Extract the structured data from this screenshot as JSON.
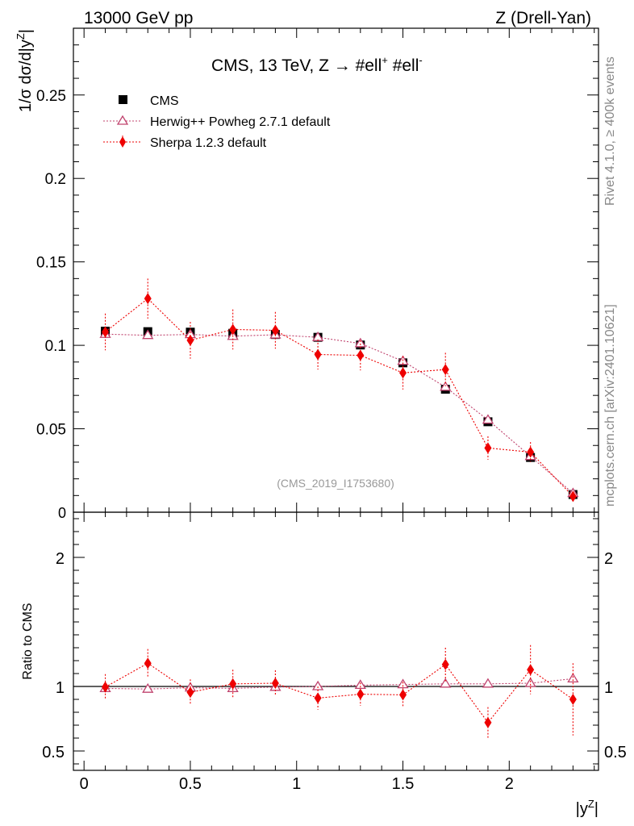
{
  "header": {
    "left_label": "13000 GeV pp",
    "right_label": "Z (Drell-Yan)"
  },
  "side_labels": {
    "rivet": "Rivet 4.1.0, ≥ 400k events",
    "mcplots": "mcplots.cern.ch [arXiv:2401.10621]"
  },
  "chart_data": [
    {
      "type": "scatter",
      "panel": "main",
      "title": "CMS, 13 TeV, Z →  #ell⁺ #ell⁻",
      "watermark": "(CMS_2019_I1753680)",
      "ylabel": "1/σ dσ/d|y^Z|",
      "xlabel": "",
      "xlim": [
        -0.05,
        2.42
      ],
      "ylim": [
        0,
        0.29
      ],
      "yticks": [
        0.05,
        0.1,
        0.15,
        0.2,
        0.25
      ],
      "ytick_labels": [
        "0.05",
        "0.1",
        "0.15",
        "0.2",
        "0.25"
      ],
      "y0_label": "0",
      "legend": "top-left",
      "x": [
        0.1,
        0.3,
        0.5,
        0.7,
        0.9,
        1.1,
        1.3,
        1.5,
        1.7,
        1.9,
        2.1,
        2.3
      ],
      "series": [
        {
          "name": "CMS",
          "marker": "square",
          "color": "#000000",
          "values": [
            0.1085,
            0.1082,
            0.1079,
            0.1072,
            0.1065,
            0.1048,
            0.1002,
            0.0895,
            0.0737,
            0.0542,
            0.0328,
            0.0106
          ]
        },
        {
          "name": "Herwig++ Powheg 2.7.1 default",
          "marker": "triangle-open",
          "color": "#c0436e",
          "values": [
            0.1067,
            0.106,
            0.1065,
            0.1055,
            0.1063,
            0.1048,
            0.1011,
            0.0905,
            0.075,
            0.0553,
            0.0335,
            0.0113
          ],
          "errors": [
            0.001,
            0.001,
            0.001,
            0.001,
            0.001,
            0.001,
            0.001,
            0.0008,
            0.0008,
            0.0008,
            0.0006,
            0.0004
          ]
        },
        {
          "name": "Sherpa 1.2.3 default",
          "marker": "diamond",
          "color": "#ee0000",
          "values": [
            0.108,
            0.128,
            0.103,
            0.1095,
            0.109,
            0.0945,
            0.094,
            0.0835,
            0.0855,
            0.0385,
            0.036,
            0.0095
          ],
          "errors": [
            0.011,
            0.012,
            0.011,
            0.012,
            0.011,
            0.009,
            0.009,
            0.01,
            0.01,
            0.007,
            0.006,
            0.003
          ]
        }
      ]
    },
    {
      "type": "scatter",
      "panel": "ratio",
      "ylabel": "Ratio to CMS",
      "xlabel": "|y^Z|",
      "xlim": [
        -0.05,
        2.42
      ],
      "ylim": [
        0.35,
        2.35
      ],
      "yticks": [
        0.5,
        1,
        2
      ],
      "ytick_labels": [
        "0.5",
        "1",
        "2"
      ],
      "xticks": [
        0,
        0.5,
        1,
        1.5,
        2
      ],
      "xtick_labels": [
        "0",
        "0.5",
        "1",
        "1.5",
        "2"
      ],
      "reference": 1,
      "x": [
        0.1,
        0.3,
        0.5,
        0.7,
        0.9,
        1.1,
        1.3,
        1.5,
        1.7,
        1.9,
        2.1,
        2.3
      ],
      "series": [
        {
          "name": "Herwig++ Powheg 2.7.1 default",
          "marker": "triangle-open",
          "color": "#c0436e",
          "values": [
            0.985,
            0.98,
            0.99,
            0.985,
            0.995,
            1.0,
            1.01,
            1.015,
            1.02,
            1.02,
            1.025,
            1.06
          ]
        },
        {
          "name": "Sherpa 1.2.3 default",
          "marker": "diamond",
          "color": "#ee0000",
          "values": [
            0.995,
            1.18,
            0.955,
            1.02,
            1.025,
            0.91,
            0.94,
            0.935,
            1.17,
            0.72,
            1.13,
            0.9
          ],
          "errors": [
            0.1,
            0.11,
            0.1,
            0.11,
            0.1,
            0.09,
            0.09,
            0.1,
            0.13,
            0.12,
            0.19,
            0.28
          ]
        }
      ]
    }
  ]
}
